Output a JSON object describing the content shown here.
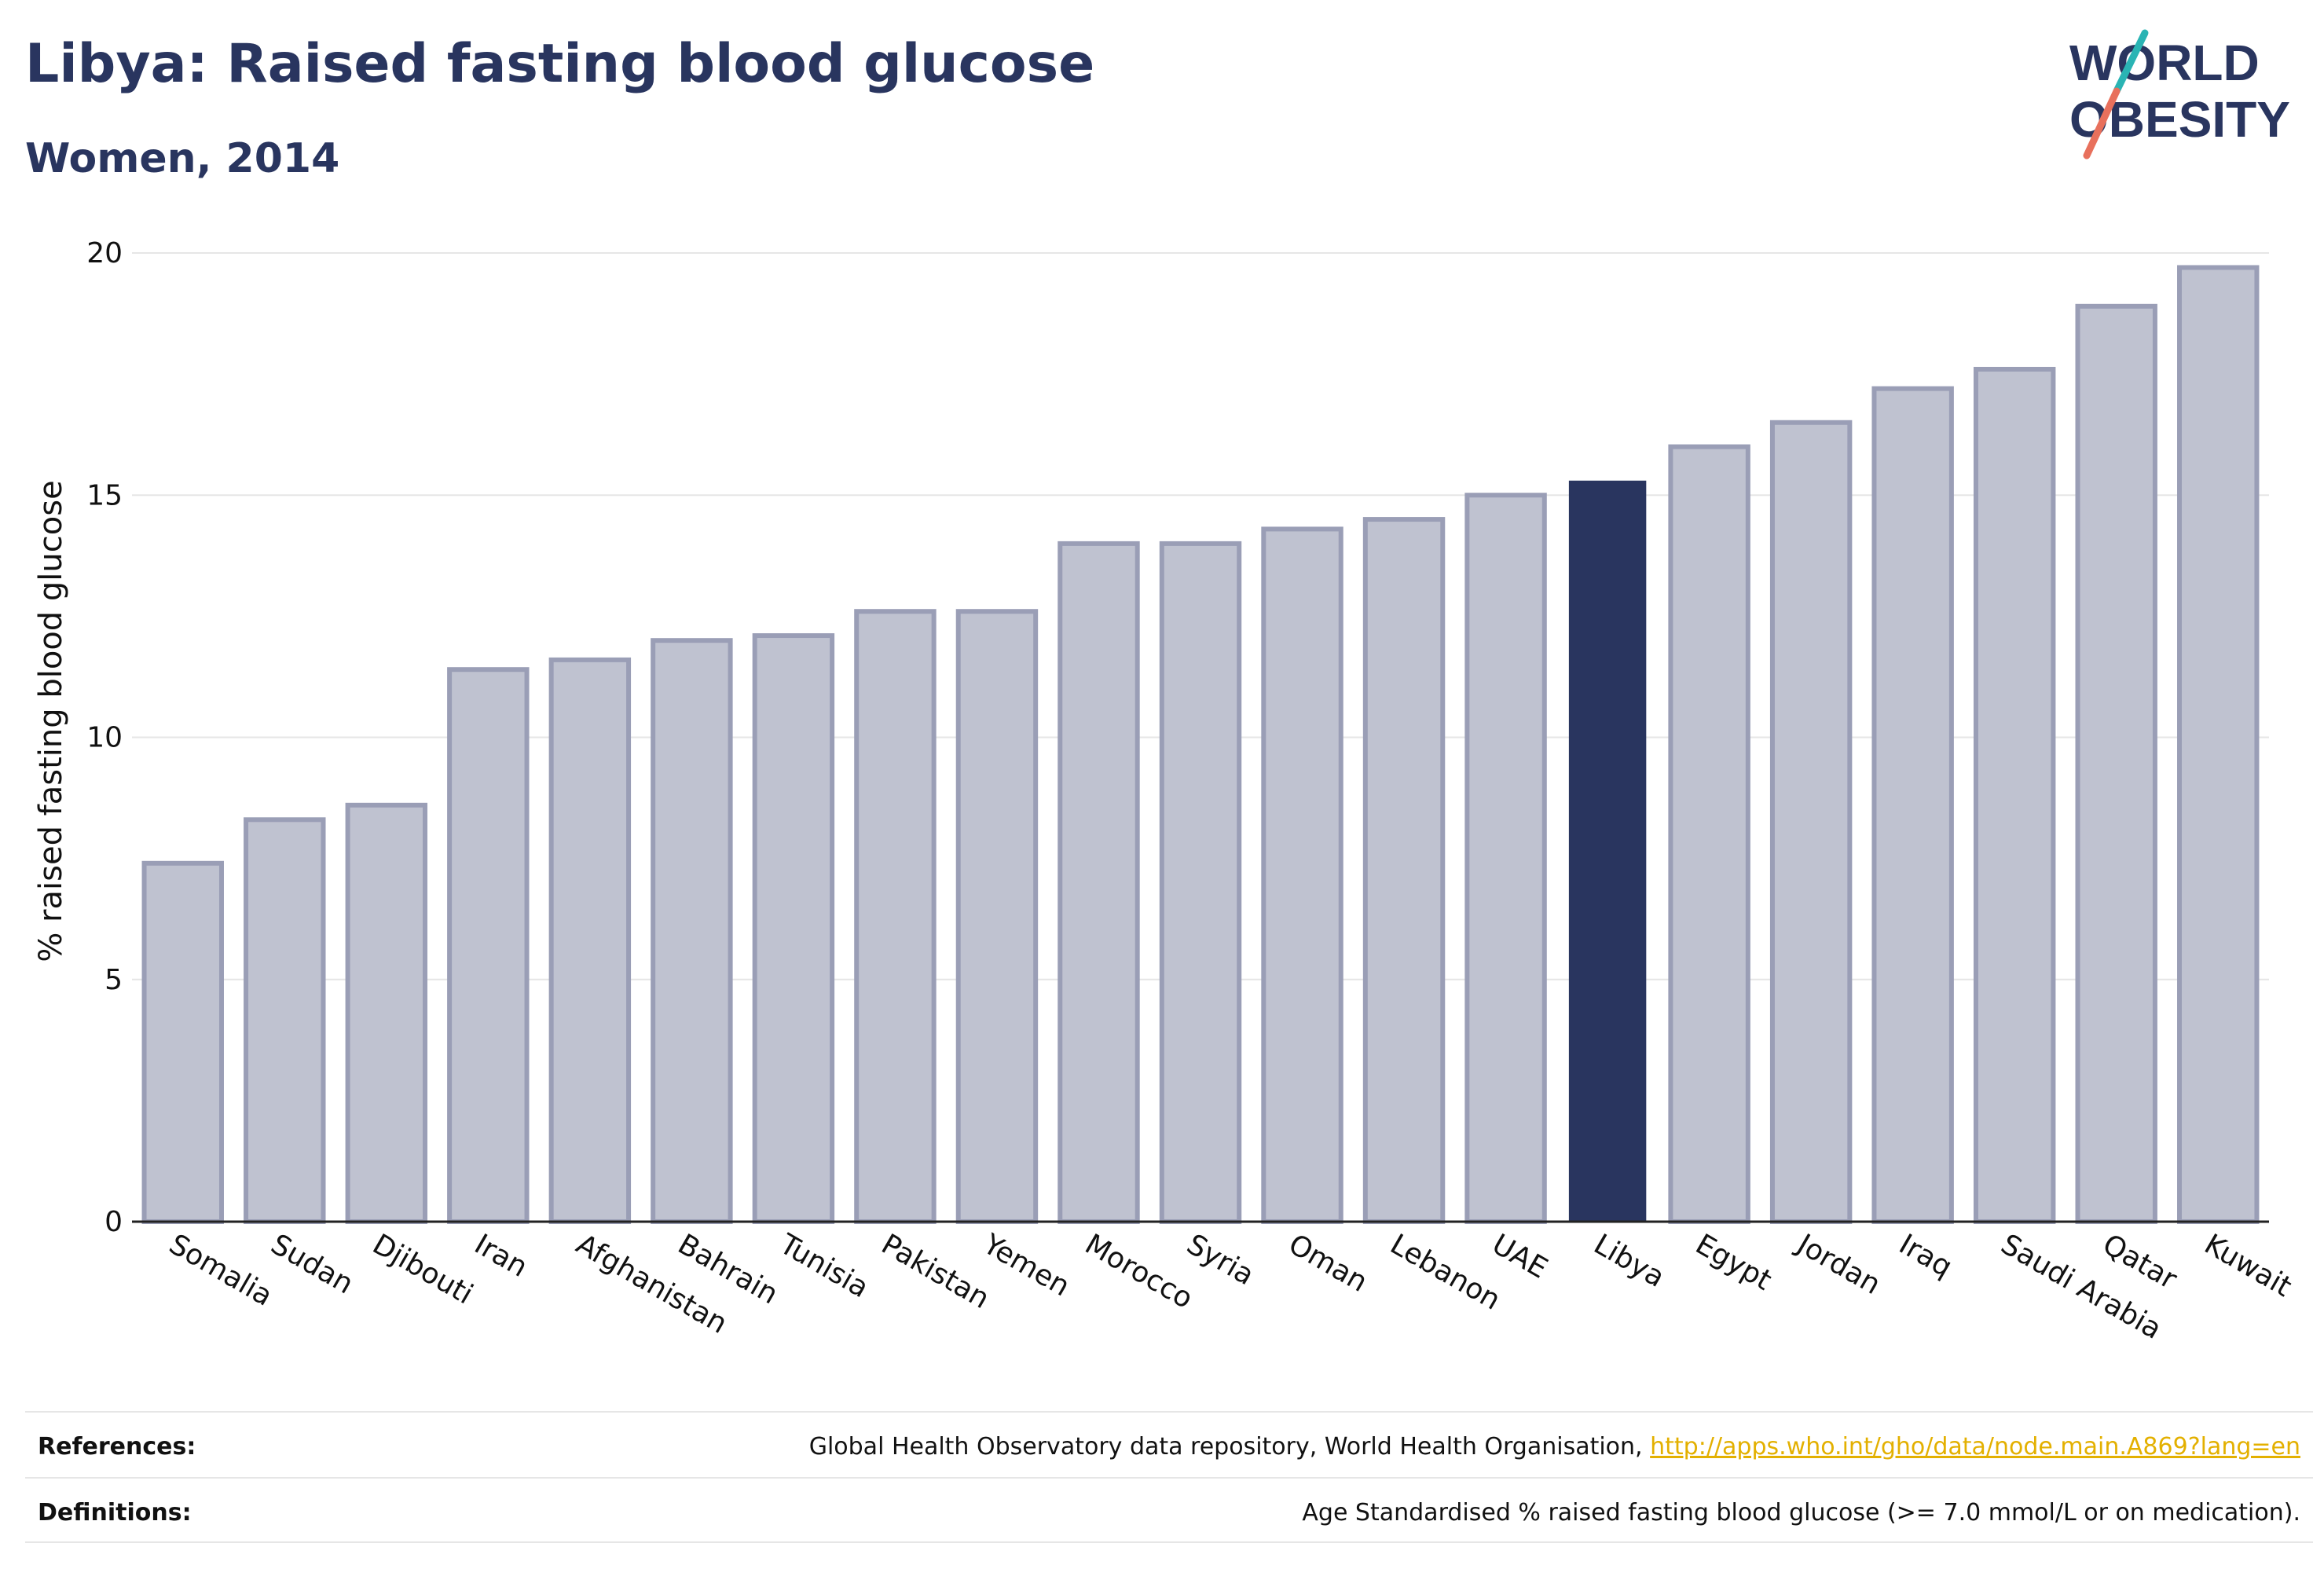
{
  "header": {
    "title": "Libya: Raised fasting blood glucose",
    "subtitle": "Women, 2014"
  },
  "logo": {
    "line1": "WORLD",
    "line2": "OBESITY",
    "colors": {
      "text": "#29355f",
      "slash_top": "#2ab4b4",
      "slash_bottom": "#e8705c"
    }
  },
  "colors": {
    "bar": "#bfc2d0",
    "bar_outline": "#9a9eb6",
    "highlight": "#29355f",
    "grid": "#e6e6e6",
    "link": "#e3b000"
  },
  "chart_data": {
    "type": "bar",
    "title": "Libya: Raised fasting blood glucose",
    "subtitle": "Women, 2014",
    "xlabel": "",
    "ylabel": "% raised fasting blood glucose",
    "ylim": [
      0,
      20
    ],
    "yticks": [
      0,
      5,
      10,
      15,
      20
    ],
    "grid": true,
    "highlight": "Libya",
    "categories": [
      "Somalia",
      "Sudan",
      "Djibouti",
      "Iran",
      "Afghanistan",
      "Bahrain",
      "Tunisia",
      "Pakistan",
      "Yemen",
      "Morocco",
      "Syria",
      "Oman",
      "Lebanon",
      "UAE",
      "Libya",
      "Egypt",
      "Jordan",
      "Iraq",
      "Saudi Arabia",
      "Qatar",
      "Kuwait"
    ],
    "values": [
      7.4,
      8.3,
      8.6,
      11.4,
      11.6,
      12.0,
      12.1,
      12.6,
      12.6,
      14.0,
      14.0,
      14.3,
      14.5,
      15.0,
      15.3,
      16.0,
      16.5,
      17.2,
      17.6,
      18.9,
      19.7
    ]
  },
  "footer": {
    "references_label": "References:",
    "references_text": "Global Health Observatory data repository, World Health Organisation,",
    "references_link": "http://apps.who.int/gho/data/node.main.A869?lang=en",
    "definitions_label": "Definitions:",
    "definitions_text": "Age Standardised % raised fasting blood glucose (>= 7.0 mmol/L or on medication)."
  }
}
